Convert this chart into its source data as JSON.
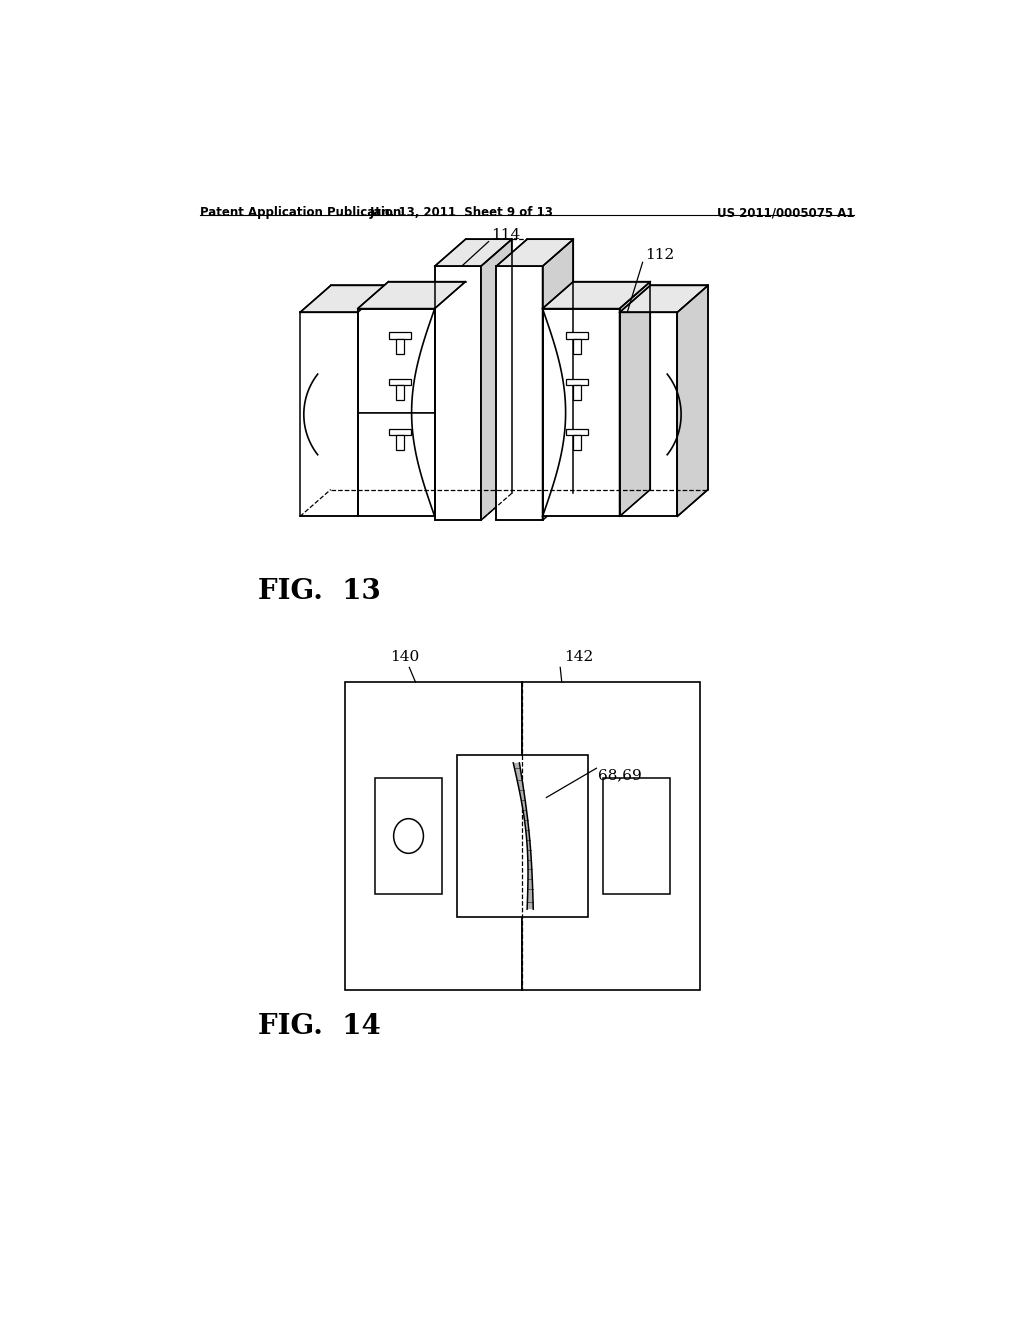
{
  "bg_color": "#ffffff",
  "header_left": "Patent Application Publication",
  "header_mid": "Jan. 13, 2011  Sheet 9 of 13",
  "header_right": "US 2011/0005075 A1",
  "fig13_label": "FIG.  13",
  "fig14_label": "FIG.  14",
  "label_114": "114",
  "label_112": "112",
  "label_140": "140",
  "label_142": "142",
  "label_6869": "68,69",
  "line_color": "#000000",
  "fill_white": "#ffffff",
  "fill_light": "#e8e8e8",
  "fill_mid": "#d0d0d0"
}
